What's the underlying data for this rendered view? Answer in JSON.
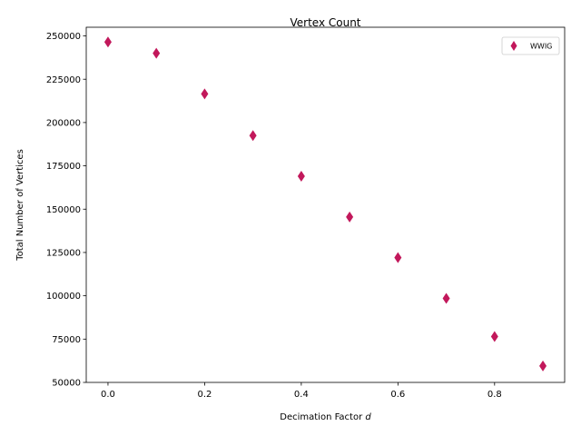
{
  "chart_data": {
    "type": "scatter",
    "title": "Vertex Count",
    "xlabel": "Decimation Factor",
    "xlabel_symbol": "d",
    "ylabel": "Total Number of Vertices",
    "xlim": [
      -0.045,
      0.945
    ],
    "ylim": [
      50000,
      255000
    ],
    "xticks": [
      0.0,
      0.2,
      0.4,
      0.6,
      0.8
    ],
    "xtick_labels": [
      "0.0",
      "0.2",
      "0.4",
      "0.6",
      "0.8"
    ],
    "yticks": [
      50000,
      75000,
      100000,
      125000,
      150000,
      175000,
      200000,
      225000,
      250000
    ],
    "ytick_labels": [
      "50000",
      "75000",
      "100000",
      "125000",
      "150000",
      "175000",
      "200000",
      "225000",
      "250000"
    ],
    "grid": false,
    "legend_position": "top-right",
    "series": [
      {
        "name": "WWIG",
        "marker": "thin-diamond",
        "color": "#c2185b",
        "x": [
          0.0,
          0.1,
          0.2,
          0.3,
          0.4,
          0.5,
          0.6,
          0.7,
          0.8,
          0.9
        ],
        "y": [
          246500,
          240000,
          216500,
          192500,
          169000,
          145500,
          122000,
          98500,
          76500,
          59500
        ]
      }
    ]
  }
}
